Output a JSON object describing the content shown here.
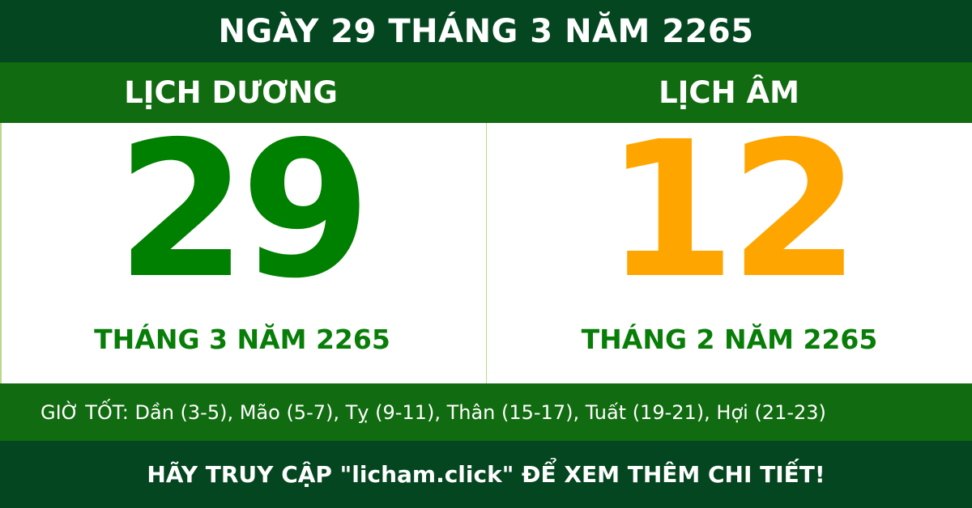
{
  "header": {
    "title": "NGÀY 29 THÁNG 3 NĂM 2265"
  },
  "solar": {
    "label": "LỊCH DƯƠNG",
    "day": "29",
    "month_year": "THÁNG 3 NĂM 2265",
    "color": "#008000"
  },
  "lunar": {
    "label": "LỊCH ÂM",
    "day": "12",
    "month_year": "THÁNG 2 NĂM 2265",
    "color": "#ffa500"
  },
  "good_hours": "GIỜ TỐT: Dần (3-5), Mão (5-7), Tỵ (9-11), Thân (15-17), Tuất (19-21), Hợi (21-23)",
  "footer": {
    "cta": "HÃY TRUY CẬP \"licham.click\" ĐỂ XEM THÊM CHI TIẾT!"
  }
}
